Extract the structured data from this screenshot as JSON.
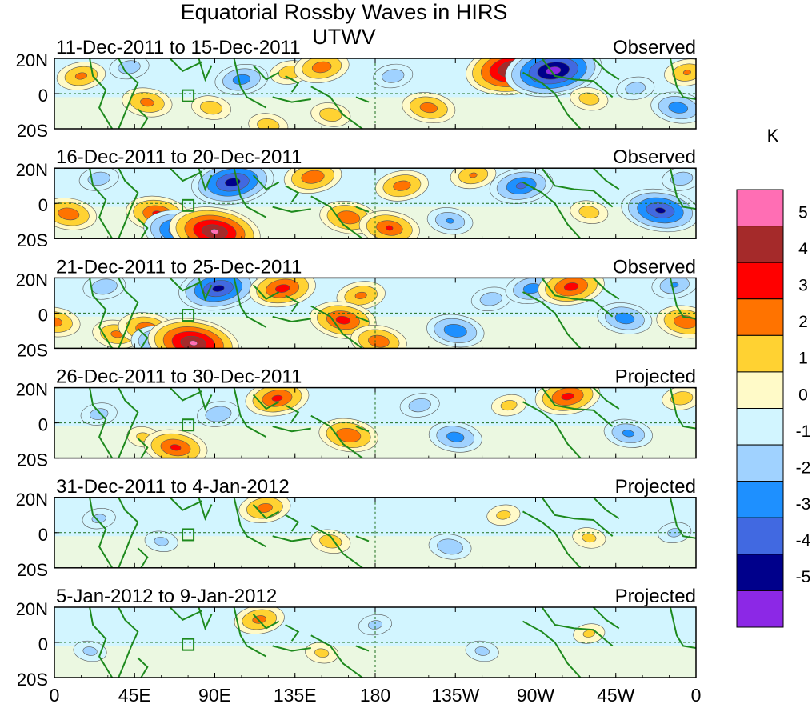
{
  "chart_data": {
    "type": "heatmap",
    "title": "Equatorial Rossby Waves in HIRS UTWV",
    "units": "K",
    "x_ticks": [
      "0",
      "45E",
      "90E",
      "135E",
      "180",
      "135W",
      "90W",
      "45W",
      "0"
    ],
    "y_ticks": [
      "20N",
      "0",
      "20S"
    ],
    "colorbar": {
      "labels": [
        "5",
        "4",
        "3",
        "2",
        "1",
        "0",
        "-1",
        "-2",
        "-3",
        "-4",
        "-5"
      ],
      "colors": [
        "#ff6eb4",
        "#a52a2a",
        "#ff0000",
        "#ff7300",
        "#ffd232",
        "#fffac8",
        "#d2f5ff",
        "#a0d2ff",
        "#1e90ff",
        "#4169e1",
        "#00008b",
        "#8c28e6"
      ]
    },
    "panels": [
      {
        "date": "11-Dec-2011 to 15-Dec-2011",
        "status": "Observed",
        "blobs": [
          {
            "lon": 15,
            "lat": 10,
            "v": 2.2
          },
          {
            "lon": 42,
            "lat": 15,
            "v": -1.6
          },
          {
            "lon": 52,
            "lat": -5,
            "v": 2.3
          },
          {
            "lon": 88,
            "lat": -8,
            "v": 1.6
          },
          {
            "lon": 105,
            "lat": 8,
            "v": -2.5
          },
          {
            "lon": 120,
            "lat": -18,
            "v": 1.6
          },
          {
            "lon": 132,
            "lat": 12,
            "v": 1.6
          },
          {
            "lon": 150,
            "lat": 15,
            "v": 2.6
          },
          {
            "lon": 155,
            "lat": -12,
            "v": 1.6
          },
          {
            "lon": 190,
            "lat": 10,
            "v": -1.6
          },
          {
            "lon": 210,
            "lat": -8,
            "v": 2.5
          },
          {
            "lon": 258,
            "lat": 14,
            "v": 5.5
          },
          {
            "lon": 280,
            "lat": 13,
            "v": -5.5
          },
          {
            "lon": 300,
            "lat": -3,
            "v": 1.5
          },
          {
            "lon": 326,
            "lat": 3,
            "v": -1.5
          },
          {
            "lon": 350,
            "lat": -8,
            "v": -2.6
          },
          {
            "lon": 355,
            "lat": 12,
            "v": 2.0
          }
        ]
      },
      {
        "date": "16-Dec-2011 to 20-Dec-2011",
        "status": "Observed",
        "blobs": [
          {
            "lon": 8,
            "lat": -6,
            "v": 2.7
          },
          {
            "lon": 25,
            "lat": 14,
            "v": -1.6
          },
          {
            "lon": 58,
            "lat": -6,
            "v": 3.2
          },
          {
            "lon": 72,
            "lat": -16,
            "v": -4.2
          },
          {
            "lon": 90,
            "lat": -16,
            "v": 5.1
          },
          {
            "lon": 100,
            "lat": 12,
            "v": -4.5
          },
          {
            "lon": 145,
            "lat": 15,
            "v": 2.8
          },
          {
            "lon": 165,
            "lat": -8,
            "v": 2.8
          },
          {
            "lon": 188,
            "lat": -14,
            "v": 3.0
          },
          {
            "lon": 195,
            "lat": 10,
            "v": 2.5
          },
          {
            "lon": 235,
            "lat": 16,
            "v": 2.0
          },
          {
            "lon": 222,
            "lat": -10,
            "v": -2.0
          },
          {
            "lon": 262,
            "lat": 10,
            "v": -3.2
          },
          {
            "lon": 300,
            "lat": -5,
            "v": 1.5
          },
          {
            "lon": 340,
            "lat": -4,
            "v": -4.2
          },
          {
            "lon": 352,
            "lat": 14,
            "v": -1.6
          }
        ]
      },
      {
        "date": "21-Dec-2011 to 25-Dec-2011",
        "status": "Observed",
        "blobs": [
          {
            "lon": 0,
            "lat": -5,
            "v": 2.4
          },
          {
            "lon": 28,
            "lat": 15,
            "v": -1.8
          },
          {
            "lon": 35,
            "lat": -12,
            "v": 2.2
          },
          {
            "lon": 52,
            "lat": -9,
            "v": 2.8
          },
          {
            "lon": 60,
            "lat": -17,
            "v": -3.0
          },
          {
            "lon": 78,
            "lat": -17,
            "v": 5.1
          },
          {
            "lon": 92,
            "lat": 14,
            "v": -4.3
          },
          {
            "lon": 128,
            "lat": 14,
            "v": 3.4
          },
          {
            "lon": 172,
            "lat": 10,
            "v": 2.2
          },
          {
            "lon": 162,
            "lat": -4,
            "v": 3.4
          },
          {
            "lon": 182,
            "lat": -16,
            "v": 2.7
          },
          {
            "lon": 225,
            "lat": -10,
            "v": -2.8
          },
          {
            "lon": 245,
            "lat": 8,
            "v": -1.6
          },
          {
            "lon": 268,
            "lat": 14,
            "v": -2.5
          },
          {
            "lon": 290,
            "lat": 15,
            "v": 3.4
          },
          {
            "lon": 320,
            "lat": -3,
            "v": -2.6
          },
          {
            "lon": 354,
            "lat": -5,
            "v": 2.8
          },
          {
            "lon": 348,
            "lat": 16,
            "v": -2.0
          }
        ]
      },
      {
        "date": "26-Dec-2011 to 30-Dec-2011",
        "status": "Projected",
        "blobs": [
          {
            "lon": 25,
            "lat": 5,
            "v": -1.4
          },
          {
            "lon": 50,
            "lat": -8,
            "v": 1.2
          },
          {
            "lon": 68,
            "lat": -14,
            "v": 3.2
          },
          {
            "lon": 92,
            "lat": 5,
            "v": -1.8
          },
          {
            "lon": 125,
            "lat": 14,
            "v": 3.2
          },
          {
            "lon": 165,
            "lat": -7,
            "v": 2.9
          },
          {
            "lon": 205,
            "lat": 10,
            "v": -1.6
          },
          {
            "lon": 225,
            "lat": -8,
            "v": -2.5
          },
          {
            "lon": 255,
            "lat": 10,
            "v": 1.3
          },
          {
            "lon": 288,
            "lat": 15,
            "v": 3.3
          },
          {
            "lon": 322,
            "lat": -6,
            "v": -2.2
          },
          {
            "lon": 352,
            "lat": 14,
            "v": 1.6
          }
        ]
      },
      {
        "date": "31-Dec-2011 to 4-Jan-2012",
        "status": "Projected",
        "blobs": [
          {
            "lon": 25,
            "lat": 8,
            "v": -1.2
          },
          {
            "lon": 60,
            "lat": -5,
            "v": -1.2
          },
          {
            "lon": 118,
            "lat": 14,
            "v": 2.4
          },
          {
            "lon": 155,
            "lat": -5,
            "v": 1.6
          },
          {
            "lon": 222,
            "lat": -8,
            "v": -1.8
          },
          {
            "lon": 252,
            "lat": 10,
            "v": 1.2
          },
          {
            "lon": 300,
            "lat": -3,
            "v": 1.2
          },
          {
            "lon": 348,
            "lat": 0,
            "v": -1.2
          }
        ]
      },
      {
        "date": "5-Jan-2012 to 9-Jan-2012",
        "status": "Projected",
        "blobs": [
          {
            "lon": 20,
            "lat": -5,
            "v": -1.2
          },
          {
            "lon": 115,
            "lat": 13,
            "v": 2.3
          },
          {
            "lon": 150,
            "lat": -6,
            "v": 1.2
          },
          {
            "lon": 180,
            "lat": 10,
            "v": -1.2
          },
          {
            "lon": 240,
            "lat": -5,
            "v": -1.2
          },
          {
            "lon": 300,
            "lat": 5,
            "v": 1.1
          }
        ]
      }
    ]
  }
}
